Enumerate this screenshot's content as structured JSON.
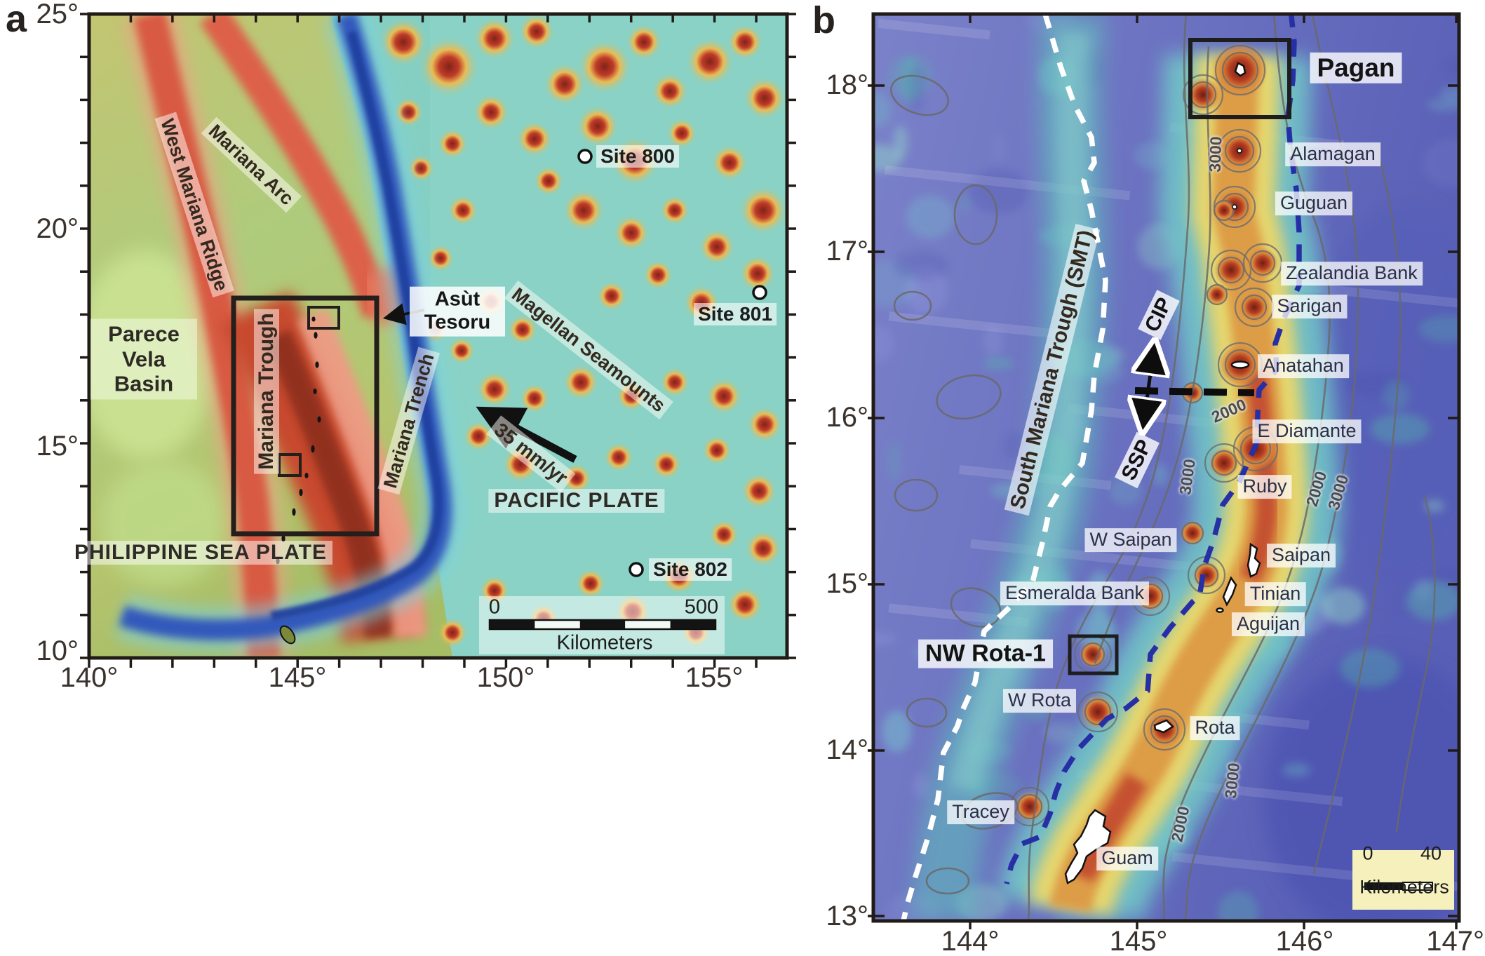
{
  "panel_a": {
    "letter": "a",
    "x_axis": [
      "140°",
      "145°",
      "150°",
      "155°"
    ],
    "y_axis": [
      "25°",
      "20°",
      "15°",
      "10°"
    ],
    "labels": {
      "west_mariana_ridge": "West Mariana Ridge",
      "mariana_arc": "Mariana Arc",
      "parece_vela_basin": "Parece Vela Basin",
      "mariana_trough": "Mariana Trough",
      "mariana_trench": "Mariana Trench",
      "asut_tesoru": "Asùt Tesoru",
      "magellan_seamounts": "Magellan Seamounts",
      "site_800": "Site 800",
      "site_801": "Site 801",
      "site_802": "Site 802",
      "plate_rate": "35 mm/yr",
      "pacific_plate": "PACIFIC PLATE",
      "philippine_sea_plate": "PHILIPPINE SEA PLATE"
    },
    "scalebar": {
      "zero": "0",
      "max": "500",
      "unit": "Kilometers"
    }
  },
  "panel_b": {
    "letter": "b",
    "x_axis": [
      "144°",
      "145°",
      "146°",
      "147°"
    ],
    "y_axis": [
      "18°",
      "17°",
      "16°",
      "15°",
      "14°",
      "13°"
    ],
    "volcanoes": {
      "pagan": "Pagan",
      "alamagan": "Alamagan",
      "guguan": "Guguan",
      "zealandia_bank": "Zealandia Bank",
      "sarigan": "Sarigan",
      "anatahan": "Anatahan",
      "e_diamante": "E Diamante",
      "ruby": "Ruby",
      "w_saipan": "W Saipan",
      "saipan": "Saipan",
      "esmeralda_bank": "Esmeralda Bank",
      "tinian": "Tinian",
      "aguijan": "Aguijan",
      "nw_rota_1": "NW Rota-1",
      "w_rota": "W Rota",
      "rota": "Rota",
      "tracey": "Tracey",
      "guam": "Guam"
    },
    "annotations": {
      "smt": "South Mariana Trough (SMT)",
      "cip": "CIP",
      "ssp": "SSP"
    },
    "contours": {
      "c1": "3000",
      "c2": "3000",
      "c3": "2000",
      "c4": "2000",
      "c5": "3000",
      "c6": "2000",
      "c7": "3000"
    },
    "scalebar": {
      "zero": "0",
      "max": "40",
      "unit": "Kilometers"
    }
  }
}
